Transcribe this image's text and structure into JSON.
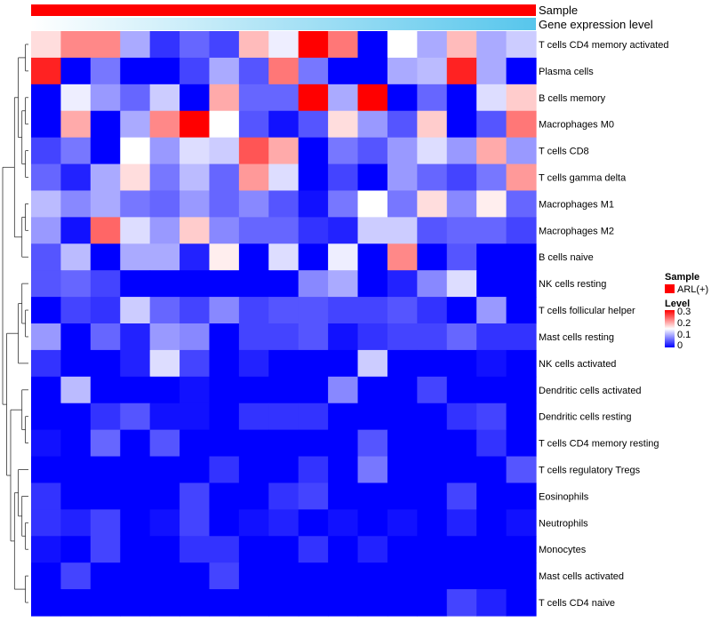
{
  "chart_data": {
    "type": "heatmap",
    "annotations": [
      {
        "label": "Sample",
        "color": "#ff0000"
      },
      {
        "label": "Gene expression level",
        "gradient": [
          "#ffffff",
          "#57c6ec"
        ]
      }
    ],
    "rows": [
      "T cells CD4 memory activated",
      "Plasma cells",
      "B cells memory",
      "Macrophages M0",
      "T cells CD8",
      "T cells gamma delta",
      "Macrophages M1",
      "Macrophages M2",
      "B cells naive",
      "NK cells resting",
      "T cells follicular helper",
      "Mast cells resting",
      "NK cells activated",
      "Dendritic cells activated",
      "Dendritic cells resting",
      "T cells CD4 memory resting",
      "T cells regulatory  Tregs",
      "Eosinophils",
      "Neutrophils",
      "Monocytes",
      "Mast cells activated",
      "T cells CD4 naive"
    ],
    "values": [
      [
        0.17,
        0.22,
        0.22,
        0.1,
        0.03,
        0.06,
        0.04,
        0.19,
        0.14,
        0.3,
        0.23,
        0.0,
        0.15,
        0.1,
        0.19,
        0.1,
        0.12
      ],
      [
        0.28,
        0.0,
        0.07,
        0.0,
        0.0,
        0.04,
        0.1,
        0.05,
        0.23,
        0.07,
        0.0,
        0.0,
        0.1,
        0.11,
        0.28,
        0.1,
        0.0
      ],
      [
        0.0,
        0.14,
        0.09,
        0.06,
        0.12,
        0.0,
        0.2,
        0.06,
        0.06,
        0.3,
        0.1,
        0.3,
        0.0,
        0.06,
        0.0,
        0.13,
        0.18
      ],
      [
        0.0,
        0.2,
        0.0,
        0.1,
        0.22,
        0.3,
        0.15,
        0.05,
        0.01,
        0.05,
        0.17,
        0.09,
        0.05,
        0.18,
        0.0,
        0.05,
        0.23
      ],
      [
        0.04,
        0.07,
        0.0,
        0.15,
        0.09,
        0.13,
        0.12,
        0.25,
        0.2,
        0.0,
        0.07,
        0.05,
        0.09,
        0.13,
        0.09,
        0.2,
        0.09
      ],
      [
        0.06,
        0.02,
        0.1,
        0.17,
        0.07,
        0.11,
        0.06,
        0.21,
        0.13,
        0.0,
        0.04,
        0.0,
        0.09,
        0.06,
        0.04,
        0.07,
        0.21
      ],
      [
        0.11,
        0.08,
        0.1,
        0.07,
        0.06,
        0.09,
        0.06,
        0.08,
        0.05,
        0.01,
        0.07,
        0.15,
        0.07,
        0.17,
        0.08,
        0.16,
        0.06
      ],
      [
        0.09,
        0.01,
        0.24,
        0.13,
        0.09,
        0.18,
        0.08,
        0.06,
        0.06,
        0.03,
        0.02,
        0.12,
        0.12,
        0.05,
        0.06,
        0.06,
        0.04
      ],
      [
        0.05,
        0.11,
        0.0,
        0.1,
        0.1,
        0.02,
        0.16,
        0.0,
        0.13,
        0.0,
        0.14,
        0.0,
        0.22,
        0.0,
        0.05,
        0.0,
        0.0
      ],
      [
        0.05,
        0.06,
        0.04,
        0.0,
        0.0,
        0.0,
        0.0,
        0.0,
        0.0,
        0.08,
        0.1,
        0.0,
        0.02,
        0.08,
        0.13,
        0.0,
        0.0
      ],
      [
        0.0,
        0.04,
        0.03,
        0.12,
        0.06,
        0.04,
        0.08,
        0.04,
        0.05,
        0.05,
        0.04,
        0.04,
        0.05,
        0.03,
        0.0,
        0.09,
        0.0
      ],
      [
        0.09,
        0.0,
        0.06,
        0.02,
        0.09,
        0.08,
        0.0,
        0.04,
        0.04,
        0.05,
        0.01,
        0.03,
        0.04,
        0.04,
        0.06,
        0.03,
        0.03
      ],
      [
        0.03,
        0.0,
        0.0,
        0.02,
        0.13,
        0.04,
        0.0,
        0.02,
        0.0,
        0.0,
        0.0,
        0.12,
        0.0,
        0.0,
        0.0,
        0.01,
        0.0
      ],
      [
        0.0,
        0.11,
        0.0,
        0.0,
        0.0,
        0.01,
        0.0,
        0.0,
        0.0,
        0.0,
        0.08,
        0.0,
        0.0,
        0.04,
        0.0,
        0.0,
        0.0
      ],
      [
        0.0,
        0.0,
        0.03,
        0.05,
        0.01,
        0.01,
        0.0,
        0.03,
        0.03,
        0.03,
        0.0,
        0.0,
        0.0,
        0.0,
        0.03,
        0.04,
        0.0
      ],
      [
        0.01,
        0.0,
        0.06,
        0.0,
        0.05,
        0.0,
        0.0,
        0.0,
        0.0,
        0.0,
        0.0,
        0.05,
        0.0,
        0.0,
        0.0,
        0.03,
        0.0
      ],
      [
        0.0,
        0.0,
        0.0,
        0.0,
        0.0,
        0.0,
        0.03,
        0.0,
        0.0,
        0.03,
        0.0,
        0.07,
        0.0,
        0.0,
        0.0,
        0.0,
        0.05
      ],
      [
        0.03,
        0.0,
        0.0,
        0.0,
        0.0,
        0.04,
        0.0,
        0.0,
        0.03,
        0.04,
        0.0,
        0.0,
        0.0,
        0.0,
        0.04,
        0.0,
        0.0
      ],
      [
        0.03,
        0.02,
        0.04,
        0.0,
        0.01,
        0.04,
        0.0,
        0.01,
        0.02,
        0.0,
        0.01,
        0.0,
        0.01,
        0.0,
        0.02,
        0.0,
        0.01
      ],
      [
        0.01,
        0.0,
        0.04,
        0.0,
        0.0,
        0.03,
        0.03,
        0.0,
        0.0,
        0.03,
        0.0,
        0.02,
        0.0,
        0.0,
        0.0,
        0.0,
        0.0
      ],
      [
        0.0,
        0.04,
        0.0,
        0.0,
        0.0,
        0.0,
        0.04,
        0.0,
        0.0,
        0.0,
        0.0,
        0.0,
        0.0,
        0.0,
        0.0,
        0.0,
        0.0
      ],
      [
        0.0,
        0.0,
        0.0,
        0.0,
        0.0,
        0.0,
        0.0,
        0.0,
        0.0,
        0.0,
        0.0,
        0.0,
        0.0,
        0.0,
        0.04,
        0.02,
        0.0
      ]
    ],
    "color_scale": {
      "min": 0,
      "mid": 0.15,
      "max": 0.3,
      "low": "#0000ff",
      "middle": "#ffffff",
      "high": "#ff0000"
    },
    "legend": {
      "placement": "right",
      "sample_title": "Sample",
      "sample_entry": "ARL(+)",
      "level_title": "Level",
      "ticks": [
        "0.3",
        "0.2",
        "0.1",
        "0"
      ]
    }
  }
}
